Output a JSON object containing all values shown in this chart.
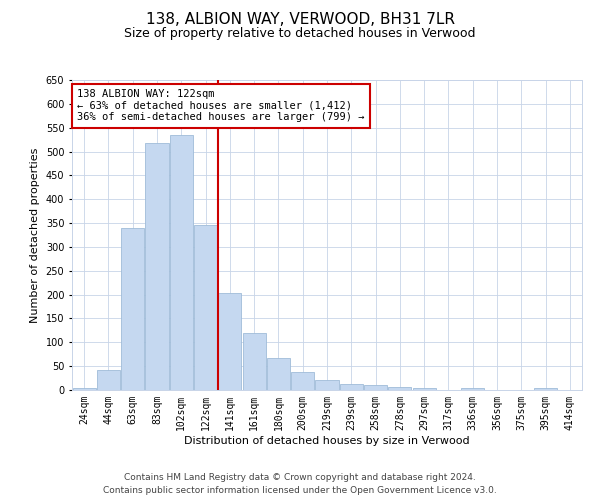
{
  "title": "138, ALBION WAY, VERWOOD, BH31 7LR",
  "subtitle": "Size of property relative to detached houses in Verwood",
  "xlabel": "Distribution of detached houses by size in Verwood",
  "ylabel": "Number of detached properties",
  "categories": [
    "24sqm",
    "44sqm",
    "63sqm",
    "83sqm",
    "102sqm",
    "122sqm",
    "141sqm",
    "161sqm",
    "180sqm",
    "200sqm",
    "219sqm",
    "239sqm",
    "258sqm",
    "278sqm",
    "297sqm",
    "317sqm",
    "336sqm",
    "356sqm",
    "375sqm",
    "395sqm",
    "414sqm"
  ],
  "values": [
    5,
    42,
    340,
    518,
    535,
    345,
    203,
    120,
    67,
    37,
    20,
    13,
    11,
    7,
    5,
    0,
    5,
    0,
    0,
    5,
    0
  ],
  "highlight_index": 5,
  "bar_color": "#c5d8f0",
  "bar_edgecolor": "#a0bcd8",
  "highlight_line_color": "#cc0000",
  "annotation_text": "138 ALBION WAY: 122sqm\n← 63% of detached houses are smaller (1,412)\n36% of semi-detached houses are larger (799) →",
  "annotation_box_color": "#ffffff",
  "annotation_box_edgecolor": "#cc0000",
  "ylim": [
    0,
    650
  ],
  "yticks": [
    0,
    50,
    100,
    150,
    200,
    250,
    300,
    350,
    400,
    450,
    500,
    550,
    600,
    650
  ],
  "footer_line1": "Contains HM Land Registry data © Crown copyright and database right 2024.",
  "footer_line2": "Contains public sector information licensed under the Open Government Licence v3.0.",
  "bg_color": "#ffffff",
  "grid_color": "#c8d4e8",
  "title_fontsize": 11,
  "subtitle_fontsize": 9,
  "axis_label_fontsize": 8,
  "tick_fontsize": 7,
  "annotation_fontsize": 7.5,
  "footer_fontsize": 6.5
}
